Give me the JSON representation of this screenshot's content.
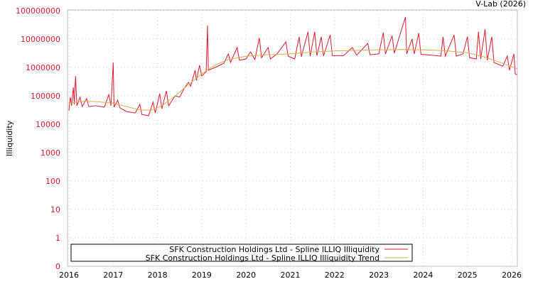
{
  "credit": "V-Lab (2026)",
  "chart_data": {
    "type": "line",
    "title": "",
    "xlabel": "",
    "ylabel": "Illiquidity",
    "yscale": "log",
    "xlim": [
      2016,
      2026.12
    ],
    "ylim": [
      0.1,
      100000000
    ],
    "grid": true,
    "legend_placement": "bottom-left",
    "x_ticks": [
      "2016",
      "2017",
      "2018",
      "2019",
      "2020",
      "2021",
      "2022",
      "2023",
      "2024",
      "2025",
      "2026"
    ],
    "y_ticks": [
      {
        "label": "100000000",
        "value": 100000000
      },
      {
        "label": "10000000",
        "value": 10000000
      },
      {
        "label": "1000000",
        "value": 1000000
      },
      {
        "label": "100000",
        "value": 100000
      },
      {
        "label": "10000",
        "value": 10000
      },
      {
        "label": "1000",
        "value": 1000
      },
      {
        "label": "100",
        "value": 100
      },
      {
        "label": "10",
        "value": 10
      },
      {
        "label": "1",
        "value": 1
      },
      {
        "label": "0",
        "value": 0.1
      }
    ],
    "series": [
      {
        "name": "SFK Construction Holdings Ltd - Spline ILLIQ Illiquidity",
        "color": "#e0192b",
        "points": [
          [
            2016,
            30000
          ],
          [
            2016.03,
            90000
          ],
          [
            2016.06,
            45000
          ],
          [
            2016.1,
            200000
          ],
          [
            2016.12,
            50000
          ],
          [
            2016.15,
            500000
          ],
          [
            2016.18,
            45000
          ],
          [
            2016.25,
            90000
          ],
          [
            2016.3,
            42000
          ],
          [
            2016.4,
            80000
          ],
          [
            2016.45,
            42000
          ],
          [
            2016.6,
            45000
          ],
          [
            2016.8,
            40000
          ],
          [
            2016.9,
            110000
          ],
          [
            2016.95,
            45000
          ],
          [
            2017,
            1500000
          ],
          [
            2017.02,
            40000
          ],
          [
            2017.1,
            70000
          ],
          [
            2017.15,
            38000
          ],
          [
            2017.3,
            28000
          ],
          [
            2017.5,
            25000
          ],
          [
            2017.6,
            50000
          ],
          [
            2017.65,
            22000
          ],
          [
            2017.8,
            20000
          ],
          [
            2017.9,
            60000
          ],
          [
            2017.95,
            25000
          ],
          [
            2018.05,
            120000
          ],
          [
            2018.1,
            35000
          ],
          [
            2018.2,
            150000
          ],
          [
            2018.25,
            45000
          ],
          [
            2018.4,
            100000
          ],
          [
            2018.5,
            90000
          ],
          [
            2018.6,
            180000
          ],
          [
            2018.7,
            300000
          ],
          [
            2018.75,
            220000
          ],
          [
            2018.85,
            800000
          ],
          [
            2018.88,
            350000
          ],
          [
            2018.95,
            1200000
          ],
          [
            2019,
            500000
          ],
          [
            2019.1,
            700000
          ],
          [
            2019.13,
            30000000
          ],
          [
            2019.15,
            800000
          ],
          [
            2019.3,
            1000000
          ],
          [
            2019.5,
            1400000
          ],
          [
            2019.6,
            3000000
          ],
          [
            2019.65,
            1500000
          ],
          [
            2019.8,
            5000000
          ],
          [
            2019.85,
            1800000
          ],
          [
            2020,
            2000000
          ],
          [
            2020.1,
            3500000
          ],
          [
            2020.2,
            1900000
          ],
          [
            2020.3,
            11000000
          ],
          [
            2020.35,
            2200000
          ],
          [
            2020.5,
            5000000
          ],
          [
            2020.55,
            2000000
          ],
          [
            2020.7,
            3000000
          ],
          [
            2020.9,
            8000000
          ],
          [
            2020.95,
            2500000
          ],
          [
            2021.1,
            2000000
          ],
          [
            2021.2,
            12000000
          ],
          [
            2021.25,
            2400000
          ],
          [
            2021.4,
            18000000
          ],
          [
            2021.45,
            2500000
          ],
          [
            2021.55,
            18000000
          ],
          [
            2021.6,
            2600000
          ],
          [
            2021.7,
            12000000
          ],
          [
            2021.75,
            2500000
          ],
          [
            2021.9,
            14000000
          ],
          [
            2021.95,
            2600000
          ],
          [
            2022.2,
            2600000
          ],
          [
            2022.4,
            5000000
          ],
          [
            2022.5,
            2700000
          ],
          [
            2022.75,
            7000000
          ],
          [
            2022.8,
            2800000
          ],
          [
            2023,
            3000000
          ],
          [
            2023.1,
            17000000
          ],
          [
            2023.15,
            3000000
          ],
          [
            2023.3,
            13000000
          ],
          [
            2023.35,
            3200000
          ],
          [
            2023.6,
            60000000
          ],
          [
            2023.63,
            3000000
          ],
          [
            2023.75,
            10000000
          ],
          [
            2023.8,
            3000000
          ],
          [
            2023.9,
            16000000
          ],
          [
            2023.95,
            2900000
          ],
          [
            2024.2,
            2700000
          ],
          [
            2024.4,
            2500000
          ],
          [
            2024.45,
            12000000
          ],
          [
            2024.5,
            2500000
          ],
          [
            2024.7,
            14000000
          ],
          [
            2024.75,
            2500000
          ],
          [
            2024.9,
            3000000
          ],
          [
            2025,
            12000000
          ],
          [
            2025.05,
            2200000
          ],
          [
            2025.2,
            2000000
          ],
          [
            2025.25,
            18000000
          ],
          [
            2025.3,
            2000000
          ],
          [
            2025.4,
            22000000
          ],
          [
            2025.45,
            1800000
          ],
          [
            2025.55,
            12000000
          ],
          [
            2025.6,
            1500000
          ],
          [
            2025.8,
            1100000
          ],
          [
            2025.9,
            2500000
          ],
          [
            2025.95,
            800000
          ],
          [
            2026.05,
            3000000
          ],
          [
            2026.08,
            600000
          ],
          [
            2026.12,
            550000
          ]
        ]
      },
      {
        "name": "SFK Construction Holdings Ltd - Spline ILLIQ Illiquidity Trend",
        "color": "#d4b04a",
        "points": [
          [
            2016,
            55000
          ],
          [
            2016.3,
            64000
          ],
          [
            2016.6,
            63000
          ],
          [
            2017,
            55000
          ],
          [
            2017.3,
            42000
          ],
          [
            2017.6,
            32000
          ],
          [
            2017.85,
            31000
          ],
          [
            2018.1,
            45000
          ],
          [
            2018.4,
            100000
          ],
          [
            2018.7,
            250000
          ],
          [
            2019,
            600000
          ],
          [
            2019.3,
            1200000
          ],
          [
            2019.6,
            1900000
          ],
          [
            2020,
            2500000
          ],
          [
            2020.5,
            2800000
          ],
          [
            2021,
            3000000
          ],
          [
            2021.5,
            3500000
          ],
          [
            2022,
            3800000
          ],
          [
            2022.5,
            4000000
          ],
          [
            2023,
            4200000
          ],
          [
            2023.5,
            4300000
          ],
          [
            2024,
            4200000
          ],
          [
            2024.5,
            3900000
          ],
          [
            2025,
            3300000
          ],
          [
            2025.4,
            2300000
          ],
          [
            2025.8,
            1400000
          ],
          [
            2026.12,
            900000
          ]
        ]
      }
    ]
  }
}
